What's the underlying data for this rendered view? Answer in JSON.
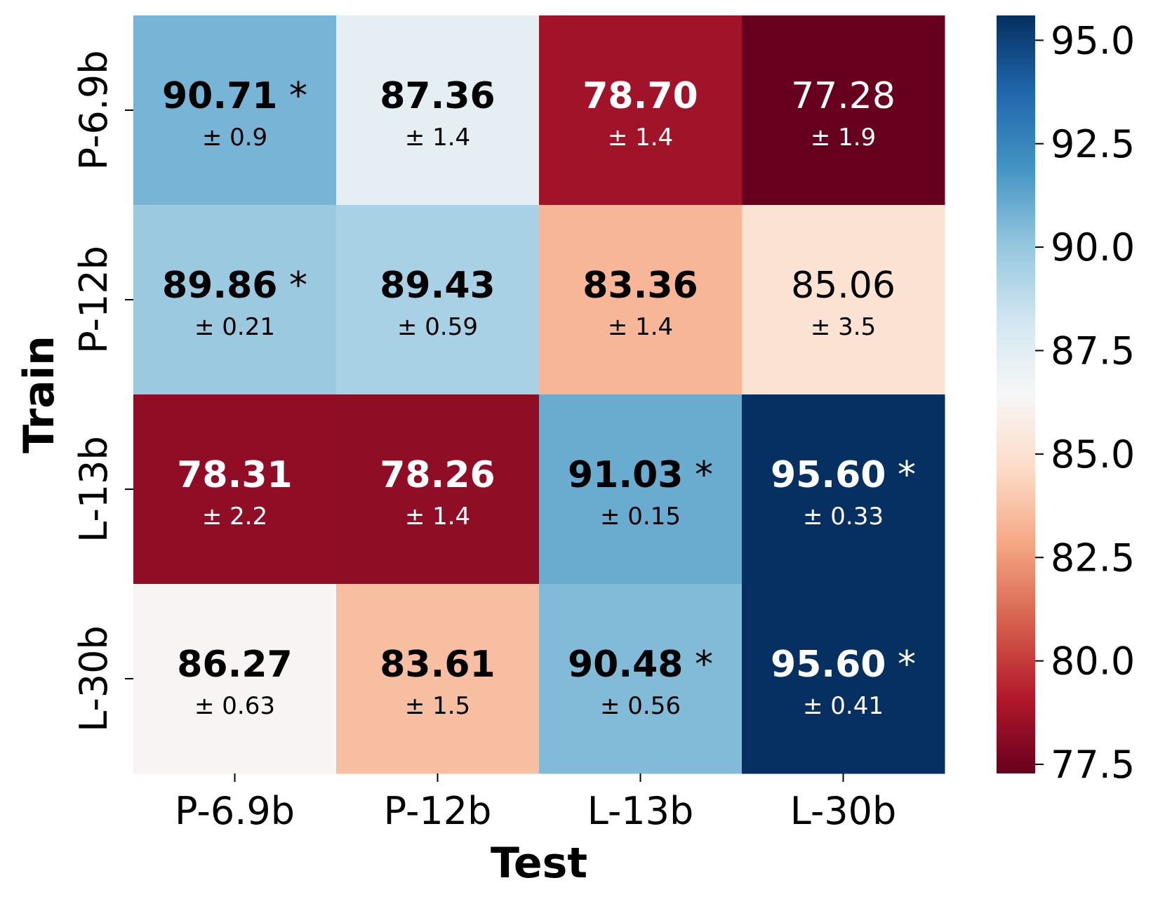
{
  "chart_data": {
    "type": "heatmap",
    "xlabel": "Test",
    "ylabel": "Train",
    "x_categories": [
      "P-6.9b",
      "P-12b",
      "L-13b",
      "L-30b"
    ],
    "y_categories": [
      "P-6.9b",
      "P-12b",
      "L-13b",
      "L-30b"
    ],
    "cells": [
      [
        {
          "value": "90.71",
          "bold": true,
          "star": true,
          "err": "± 0.9"
        },
        {
          "value": "87.36",
          "bold": true,
          "star": false,
          "err": "± 1.4"
        },
        {
          "value": "78.70",
          "bold": true,
          "star": false,
          "err": "± 1.4"
        },
        {
          "value": "77.28",
          "bold": false,
          "star": false,
          "err": "± 1.9"
        }
      ],
      [
        {
          "value": "89.86",
          "bold": true,
          "star": true,
          "err": "± 0.21"
        },
        {
          "value": "89.43",
          "bold": true,
          "star": false,
          "err": "± 0.59"
        },
        {
          "value": "83.36",
          "bold": true,
          "star": false,
          "err": "± 1.4"
        },
        {
          "value": "85.06",
          "bold": false,
          "star": false,
          "err": "± 3.5"
        }
      ],
      [
        {
          "value": "78.31",
          "bold": true,
          "star": false,
          "err": "± 2.2"
        },
        {
          "value": "78.26",
          "bold": true,
          "star": false,
          "err": "± 1.4"
        },
        {
          "value": "91.03",
          "bold": true,
          "star": true,
          "err": "± 0.15"
        },
        {
          "value": "95.60",
          "bold": true,
          "star": true,
          "err": "± 0.33"
        }
      ],
      [
        {
          "value": "86.27",
          "bold": true,
          "star": false,
          "err": "± 0.63"
        },
        {
          "value": "83.61",
          "bold": true,
          "star": false,
          "err": "± 1.5"
        },
        {
          "value": "90.48",
          "bold": true,
          "star": true,
          "err": "± 0.56"
        },
        {
          "value": "95.60",
          "bold": true,
          "star": true,
          "err": "± 0.41"
        }
      ]
    ],
    "star_symbol": "*",
    "colorbar": {
      "colormap": "RdBu",
      "vmin": 77.28,
      "vmax": 95.6,
      "ticks": [
        "77.5",
        "80.0",
        "82.5",
        "85.0",
        "87.5",
        "90.0",
        "92.5",
        "95.0"
      ],
      "colormap_stops": [
        "#67001f",
        "#b2182b",
        "#d6604d",
        "#f4a582",
        "#fddbc7",
        "#f7f7f7",
        "#d1e5f0",
        "#92c5de",
        "#4393c3",
        "#2166ac",
        "#053061"
      ]
    }
  }
}
